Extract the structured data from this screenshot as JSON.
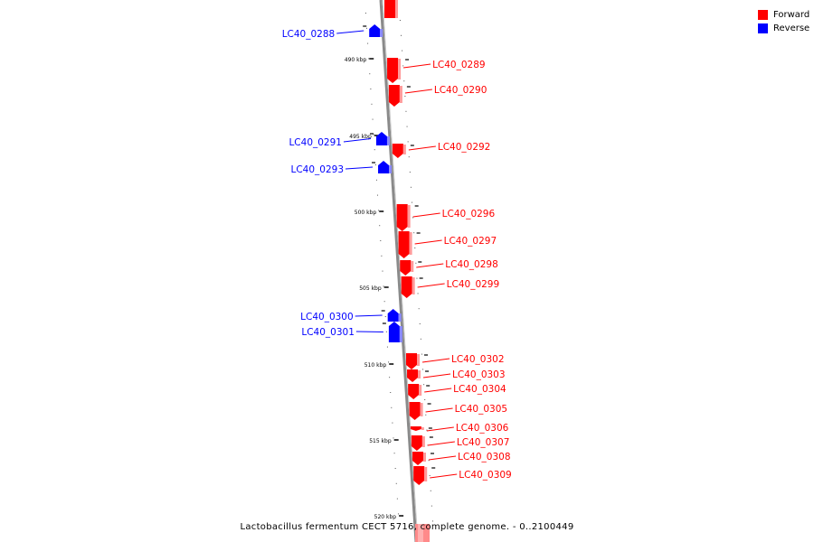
{
  "caption": "Lactobacillus fermentum CECT 5716, complete genome. - 0..2100449",
  "legend": [
    {
      "label": "Forward",
      "color": "#ff0000"
    },
    {
      "label": "Reverse",
      "color": "#0000ff"
    }
  ],
  "colors": {
    "forward": "#ff0000",
    "reverse": "#0000ff",
    "backbone": "#888888"
  },
  "ticks": [
    {
      "label": "490 kbp",
      "kbp": 490
    },
    {
      "label": "495 kbp",
      "kbp": 495
    },
    {
      "label": "500 kbp",
      "kbp": 500
    },
    {
      "label": "505 kbp",
      "kbp": 505
    },
    {
      "label": "510 kbp",
      "kbp": 510
    },
    {
      "label": "515 kbp",
      "kbp": 515
    },
    {
      "label": "520 kbp",
      "kbp": 520
    }
  ],
  "genes": [
    {
      "label": "LC40_0288",
      "strand": "reverse"
    },
    {
      "label": "LC40_0289",
      "strand": "forward"
    },
    {
      "label": "LC40_0290",
      "strand": "forward"
    },
    {
      "label": "LC40_0291",
      "strand": "reverse"
    },
    {
      "label": "LC40_0292",
      "strand": "forward"
    },
    {
      "label": "LC40_0293",
      "strand": "reverse"
    },
    {
      "label": "LC40_0296",
      "strand": "forward"
    },
    {
      "label": "LC40_0297",
      "strand": "forward"
    },
    {
      "label": "LC40_0298",
      "strand": "forward"
    },
    {
      "label": "LC40_0299",
      "strand": "forward"
    },
    {
      "label": "LC40_0300",
      "strand": "reverse"
    },
    {
      "label": "LC40_0301",
      "strand": "reverse"
    },
    {
      "label": "LC40_0302",
      "strand": "forward"
    },
    {
      "label": "LC40_0303",
      "strand": "forward"
    },
    {
      "label": "LC40_0304",
      "strand": "forward"
    },
    {
      "label": "LC40_0305",
      "strand": "forward"
    },
    {
      "label": "LC40_0306",
      "strand": "forward"
    },
    {
      "label": "LC40_0307",
      "strand": "forward"
    },
    {
      "label": "LC40_0308",
      "strand": "forward"
    },
    {
      "label": "LC40_0309",
      "strand": "forward"
    }
  ]
}
